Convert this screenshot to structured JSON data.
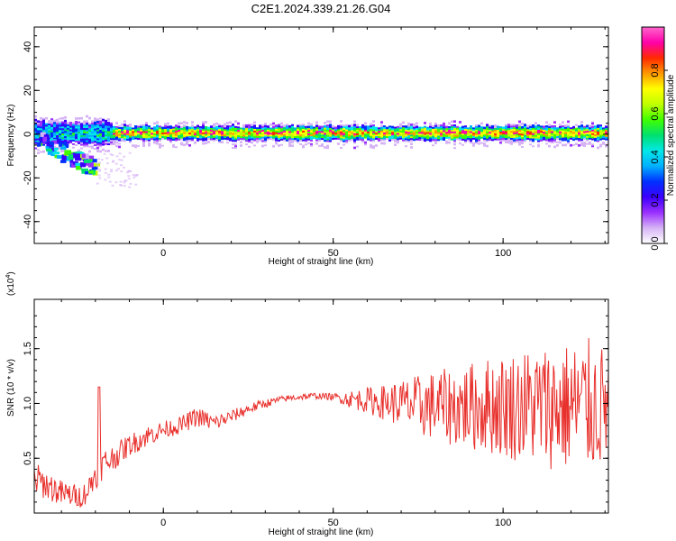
{
  "title": "C2E1.2024.339.21.26.G04",
  "chart_data": [
    {
      "type": "heatmap",
      "xlabel": "Height of straight line (km)",
      "ylabel": "Frequency (Hz)",
      "xlim": [
        -38,
        131
      ],
      "ylim": [
        -50,
        49
      ],
      "xticks": [
        0,
        50,
        100
      ],
      "yticks": [
        40,
        20,
        0,
        -20,
        -40
      ],
      "colorbar": {
        "label": "Normalized spectral amplitude",
        "range": [
          0.0,
          1.0
        ],
        "ticks": [
          "0.0",
          "0.2",
          "0.4",
          "0.6",
          "0.8"
        ],
        "tick_values": [
          0.0,
          0.2,
          0.4,
          0.6,
          0.8
        ],
        "colors": [
          "#ffffff",
          "#d6b3f5",
          "#9b30ff",
          "#3b00ff",
          "#0030ff",
          "#00b0ff",
          "#00e8e8",
          "#00e070",
          "#40ff00",
          "#c0ff00",
          "#ffff00",
          "#ff9900",
          "#ff2a00",
          "#ff00aa",
          "#ff66cc"
        ]
      },
      "ridge": {
        "center_frequency_hz": 1,
        "halfwidth_hz": 3,
        "early_branch": {
          "x": [
            -37,
            -33,
            -29,
            -25,
            -21
          ],
          "frequency_hz": [
            -2,
            -5,
            -9,
            -12,
            -14
          ]
        }
      }
    },
    {
      "type": "line",
      "xlabel": "Height of straight line (km)",
      "ylabel": "SNR (10 * v/v)",
      "scale_label": "(x10",
      "scale_exponent": "4",
      "xlim": [
        -38,
        131
      ],
      "ylim": [
        0.0,
        1.95
      ],
      "xticks": [
        0,
        50,
        100
      ],
      "yticks": [
        0.5,
        1.0,
        1.5
      ],
      "ytick_labels": [
        "0.5",
        "1.0",
        "1.5"
      ],
      "line_color": "#e8302c",
      "series": [
        {
          "x": [
            -38,
            -30,
            -24,
            -22,
            -19,
            -15,
            -10,
            -5,
            0,
            5,
            10,
            15,
            20,
            25,
            30,
            35,
            40,
            45,
            50,
            55,
            60,
            65,
            70,
            75,
            80,
            85,
            90,
            95,
            100,
            105,
            110,
            115,
            120,
            125,
            131
          ],
          "values": [
            0.32,
            0.18,
            0.15,
            0.22,
            0.42,
            0.5,
            0.62,
            0.7,
            0.76,
            0.8,
            0.88,
            0.82,
            0.88,
            0.95,
            1.0,
            1.04,
            1.06,
            1.07,
            1.06,
            1.04,
            1.03,
            1.01,
            1.0,
            0.98,
            0.98,
            0.97,
            0.97,
            0.98,
            0.98,
            0.98,
            0.98,
            0.97,
            0.97,
            0.98,
            0.98
          ],
          "spread": [
            0.15,
            0.12,
            0.1,
            0.12,
            0.15,
            0.12,
            0.1,
            0.1,
            0.08,
            0.08,
            0.09,
            0.08,
            0.06,
            0.05,
            0.04,
            0.03,
            0.03,
            0.03,
            0.03,
            0.08,
            0.12,
            0.16,
            0.22,
            0.28,
            0.32,
            0.36,
            0.4,
            0.44,
            0.48,
            0.52,
            0.55,
            0.58,
            0.6,
            0.62,
            0.55
          ]
        }
      ]
    }
  ]
}
